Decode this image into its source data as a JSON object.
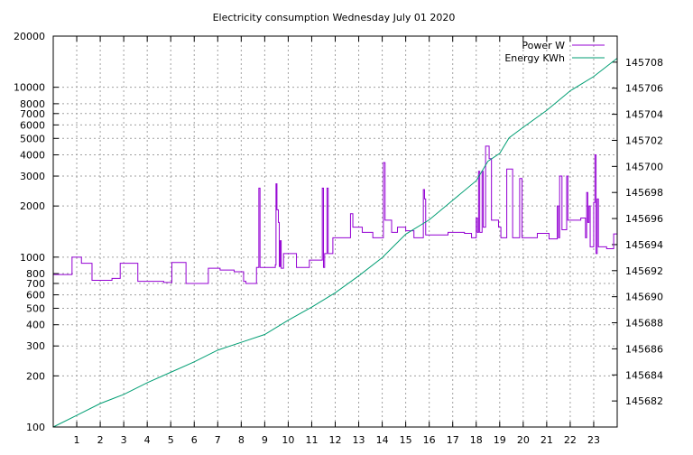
{
  "chart_data": {
    "type": "line",
    "title": "Electricity consumption Wednesday July 01 2020",
    "xlabel": "",
    "ylabel": "",
    "y2label": "",
    "xlim": [
      0,
      24
    ],
    "ylim": [
      100,
      20000
    ],
    "yscale": "log",
    "y2lim": [
      145680,
      145710
    ],
    "grid": true,
    "legend": "top-right",
    "x_ticks": [
      1,
      2,
      3,
      4,
      5,
      6,
      7,
      8,
      9,
      10,
      11,
      12,
      13,
      14,
      15,
      16,
      17,
      18,
      19,
      20,
      21,
      22,
      23
    ],
    "y_ticks": [
      100,
      200,
      300,
      400,
      500,
      600,
      700,
      800,
      1000,
      2000,
      3000,
      4000,
      5000,
      6000,
      7000,
      8000,
      10000,
      20000
    ],
    "y2_ticks": [
      145682,
      145684,
      145686,
      145688,
      145690,
      145692,
      145694,
      145696,
      145698,
      145700,
      145702,
      145704,
      145706,
      145708
    ],
    "series": [
      {
        "name": "Power W",
        "axis": "left",
        "style": "steps",
        "color": "#9400d3",
        "points": [
          [
            0,
            790
          ],
          [
            0.8,
            1000
          ],
          [
            1.2,
            920
          ],
          [
            1.65,
            730
          ],
          [
            2.5,
            750
          ],
          [
            2.85,
            920
          ],
          [
            3.6,
            720
          ],
          [
            4.7,
            710
          ],
          [
            5.05,
            930
          ],
          [
            5.65,
            700
          ],
          [
            6.6,
            860
          ],
          [
            7.1,
            840
          ],
          [
            7.7,
            820
          ],
          [
            8.1,
            720
          ],
          [
            8.2,
            700
          ],
          [
            8.65,
            870
          ],
          [
            8.75,
            2550
          ],
          [
            8.8,
            870
          ],
          [
            9.45,
            900
          ],
          [
            9.48,
            2700
          ],
          [
            9.52,
            1900
          ],
          [
            9.58,
            1600
          ],
          [
            9.62,
            880
          ],
          [
            9.66,
            1250
          ],
          [
            9.7,
            860
          ],
          [
            9.8,
            1050
          ],
          [
            10.35,
            870
          ],
          [
            10.9,
            960
          ],
          [
            11.45,
            2550
          ],
          [
            11.5,
            870
          ],
          [
            11.55,
            1050
          ],
          [
            11.65,
            2550
          ],
          [
            11.7,
            1050
          ],
          [
            11.9,
            1300
          ],
          [
            12.55,
            1300
          ],
          [
            12.65,
            1800
          ],
          [
            12.75,
            1500
          ],
          [
            13.15,
            1400
          ],
          [
            13.6,
            1300
          ],
          [
            14.05,
            3600
          ],
          [
            14.12,
            1650
          ],
          [
            14.4,
            1400
          ],
          [
            14.65,
            1500
          ],
          [
            15.0,
            1430
          ],
          [
            15.35,
            1300
          ],
          [
            15.75,
            2500
          ],
          [
            15.8,
            2200
          ],
          [
            15.85,
            1350
          ],
          [
            16.8,
            1400
          ],
          [
            17.5,
            1380
          ],
          [
            17.8,
            1300
          ],
          [
            18.0,
            1700
          ],
          [
            18.05,
            1400
          ],
          [
            18.1,
            3200
          ],
          [
            18.15,
            1400
          ],
          [
            18.25,
            3200
          ],
          [
            18.3,
            1500
          ],
          [
            18.4,
            4500
          ],
          [
            18.55,
            3800
          ],
          [
            18.65,
            1650
          ],
          [
            18.95,
            1500
          ],
          [
            19.05,
            1300
          ],
          [
            19.3,
            3300
          ],
          [
            19.55,
            1300
          ],
          [
            19.85,
            2900
          ],
          [
            19.95,
            1300
          ],
          [
            20.6,
            1380
          ],
          [
            21.1,
            1280
          ],
          [
            21.45,
            2000
          ],
          [
            21.5,
            1300
          ],
          [
            21.55,
            3000
          ],
          [
            21.65,
            1450
          ],
          [
            21.85,
            3000
          ],
          [
            21.9,
            1650
          ],
          [
            22.45,
            1700
          ],
          [
            22.65,
            1300
          ],
          [
            22.7,
            2400
          ],
          [
            22.75,
            1600
          ],
          [
            22.8,
            2000
          ],
          [
            22.85,
            1150
          ],
          [
            23.0,
            2100
          ],
          [
            23.05,
            4000
          ],
          [
            23.1,
            1050
          ],
          [
            23.15,
            2200
          ],
          [
            23.2,
            1150
          ],
          [
            23.55,
            1120
          ],
          [
            23.85,
            1370
          ],
          [
            24,
            1370
          ]
        ]
      },
      {
        "name": "Energy KWh",
        "axis": "right",
        "style": "line",
        "color": "#009e73",
        "points": [
          [
            0,
            145680
          ],
          [
            1,
            145680.9
          ],
          [
            2,
            145681.8
          ],
          [
            3,
            145682.5
          ],
          [
            4,
            145683.4
          ],
          [
            5,
            145684.2
          ],
          [
            6,
            145685
          ],
          [
            7,
            145685.9
          ],
          [
            8,
            145686.5
          ],
          [
            9,
            145687.1
          ],
          [
            10,
            145688.2
          ],
          [
            11,
            145689.2
          ],
          [
            12,
            145690.3
          ],
          [
            13,
            145691.6
          ],
          [
            14,
            145693
          ],
          [
            15,
            145694.8
          ],
          [
            16,
            145695.9
          ],
          [
            17,
            145697.4
          ],
          [
            18,
            145698.9
          ],
          [
            18.5,
            145700.4
          ],
          [
            19,
            145701
          ],
          [
            19.4,
            145702.2
          ],
          [
            20,
            145703
          ],
          [
            21,
            145704.3
          ],
          [
            21.4,
            145704.9
          ],
          [
            22,
            145705.8
          ],
          [
            23,
            145706.9
          ],
          [
            24,
            145708.3
          ]
        ]
      }
    ]
  }
}
